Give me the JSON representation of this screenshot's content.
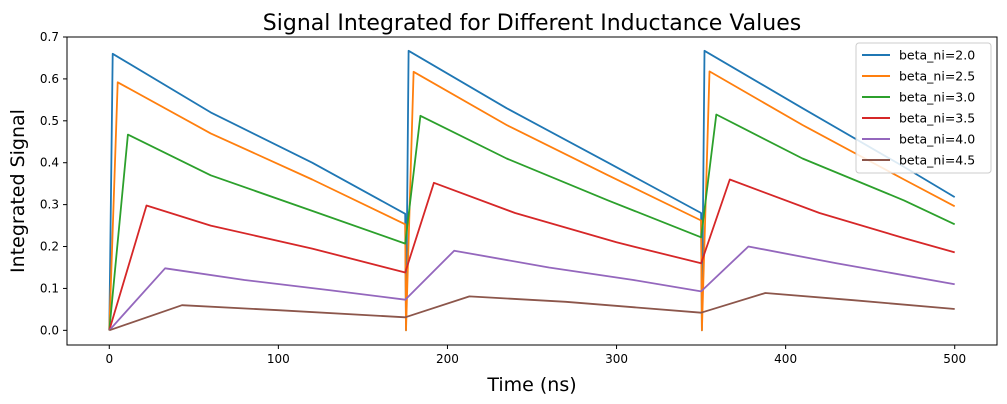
{
  "chart_data": {
    "type": "line",
    "title": "Signal Integrated for Different Inductance Values",
    "xlabel": "Time (ns)",
    "ylabel": "Integrated Signal",
    "xlim": [
      -25,
      525
    ],
    "ylim": [
      -0.035,
      0.7
    ],
    "xticks": [
      "0",
      "100",
      "200",
      "300",
      "400",
      "500"
    ],
    "yticks": [
      "0.0",
      "0.1",
      "0.2",
      "0.3",
      "0.4",
      "0.5",
      "0.6",
      "0.7"
    ],
    "grid": false,
    "legend_position": "top-right",
    "pulse_starts": [
      0,
      175,
      350
    ],
    "series": [
      {
        "name": "beta_ni=2.0",
        "color": "#1f77b4",
        "points": [
          [
            0,
            0.0
          ],
          [
            2,
            0.66
          ],
          [
            60,
            0.52
          ],
          [
            120,
            0.4
          ],
          [
            175,
            0.278
          ],
          [
            175.5,
            0.0
          ],
          [
            177,
            0.667
          ],
          [
            235,
            0.53
          ],
          [
            295,
            0.4
          ],
          [
            350,
            0.28
          ],
          [
            350.5,
            0.0
          ],
          [
            352,
            0.667
          ],
          [
            410,
            0.53
          ],
          [
            470,
            0.39
          ],
          [
            500,
            0.318
          ]
        ]
      },
      {
        "name": "beta_ni=2.5",
        "color": "#ff7f0e",
        "points": [
          [
            0,
            0.0
          ],
          [
            5,
            0.592
          ],
          [
            60,
            0.47
          ],
          [
            120,
            0.36
          ],
          [
            175,
            0.253
          ],
          [
            175.5,
            0.0
          ],
          [
            180,
            0.617
          ],
          [
            235,
            0.49
          ],
          [
            295,
            0.37
          ],
          [
            350,
            0.262
          ],
          [
            350.5,
            0.0
          ],
          [
            355,
            0.618
          ],
          [
            410,
            0.49
          ],
          [
            470,
            0.36
          ],
          [
            500,
            0.296
          ]
        ]
      },
      {
        "name": "beta_ni=3.0",
        "color": "#2ca02c",
        "points": [
          [
            0,
            0.0
          ],
          [
            11,
            0.467
          ],
          [
            60,
            0.37
          ],
          [
            120,
            0.285
          ],
          [
            175,
            0.207
          ],
          [
            184,
            0.512
          ],
          [
            235,
            0.41
          ],
          [
            295,
            0.31
          ],
          [
            350,
            0.222
          ],
          [
            359,
            0.515
          ],
          [
            410,
            0.41
          ],
          [
            470,
            0.31
          ],
          [
            500,
            0.253
          ]
        ]
      },
      {
        "name": "beta_ni=3.5",
        "color": "#d62728",
        "points": [
          [
            0,
            0.0
          ],
          [
            22,
            0.298
          ],
          [
            60,
            0.25
          ],
          [
            120,
            0.195
          ],
          [
            175,
            0.138
          ],
          [
            192,
            0.352
          ],
          [
            240,
            0.28
          ],
          [
            300,
            0.21
          ],
          [
            350,
            0.16
          ],
          [
            367,
            0.36
          ],
          [
            420,
            0.28
          ],
          [
            470,
            0.22
          ],
          [
            500,
            0.186
          ]
        ]
      },
      {
        "name": "beta_ni=4.0",
        "color": "#9467bd",
        "points": [
          [
            0,
            0.0
          ],
          [
            33,
            0.148
          ],
          [
            80,
            0.12
          ],
          [
            130,
            0.096
          ],
          [
            175,
            0.073
          ],
          [
            204,
            0.19
          ],
          [
            260,
            0.15
          ],
          [
            310,
            0.12
          ],
          [
            350,
            0.093
          ],
          [
            378,
            0.2
          ],
          [
            430,
            0.16
          ],
          [
            500,
            0.11
          ]
        ]
      },
      {
        "name": "beta_ni=4.5",
        "color": "#8c564b",
        "points": [
          [
            0,
            0.0
          ],
          [
            43,
            0.06
          ],
          [
            100,
            0.048
          ],
          [
            175,
            0.031
          ],
          [
            213,
            0.081
          ],
          [
            270,
            0.068
          ],
          [
            350,
            0.042
          ],
          [
            388,
            0.089
          ],
          [
            440,
            0.072
          ],
          [
            500,
            0.051
          ]
        ]
      }
    ]
  }
}
